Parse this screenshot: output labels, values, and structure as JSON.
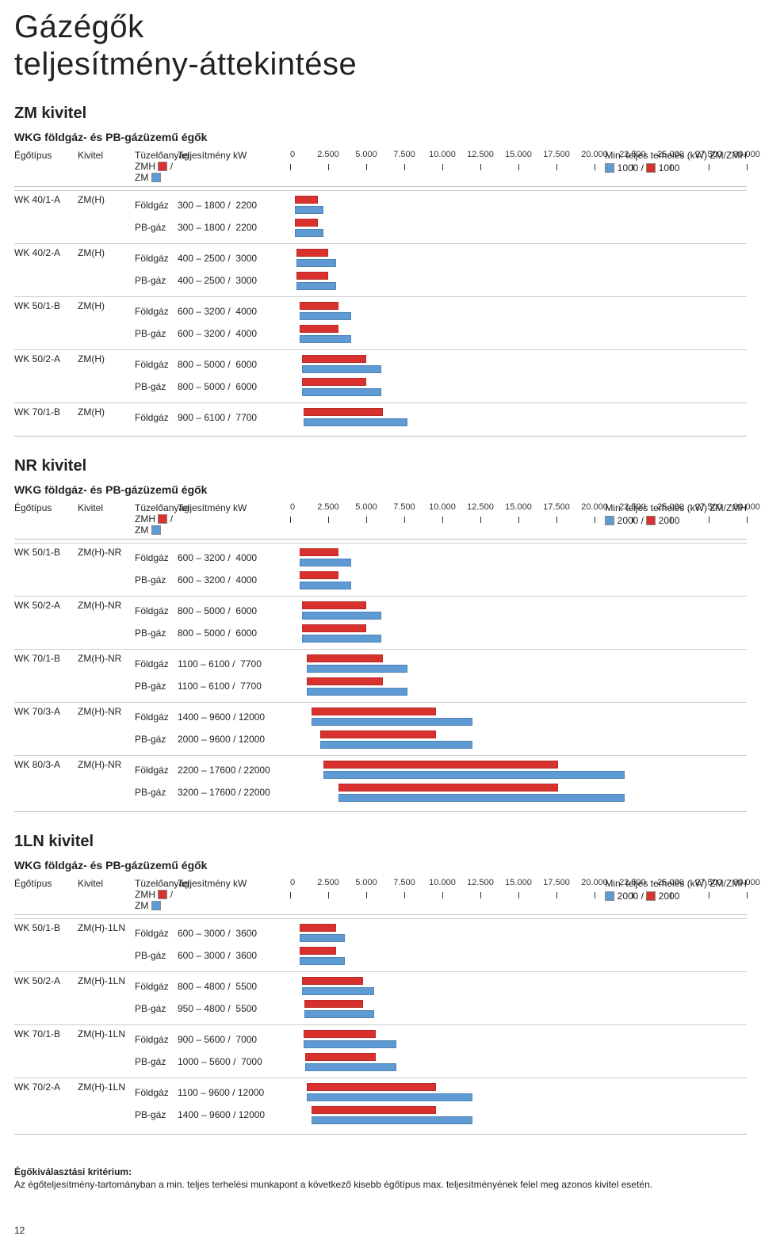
{
  "title": "Gázégők",
  "subtitle": "teljesítmény-áttekintése",
  "axis": {
    "min": 0,
    "max": 30000,
    "ticks": [
      {
        "v": 0,
        "l": "0"
      },
      {
        "v": 2500,
        "l": "2.500"
      },
      {
        "v": 5000,
        "l": "5.000"
      },
      {
        "v": 7500,
        "l": "7.500"
      },
      {
        "v": 10000,
        "l": "10.000"
      },
      {
        "v": 12500,
        "l": "12.500"
      },
      {
        "v": 15000,
        "l": "15.000"
      },
      {
        "v": 17500,
        "l": "17.500"
      },
      {
        "v": 20000,
        "l": "20.000"
      },
      {
        "v": 22500,
        "l": "22.500"
      },
      {
        "v": 25000,
        "l": "25.000"
      },
      {
        "v": 27500,
        "l": "27.500"
      },
      {
        "v": 30000,
        "l": "30.000"
      }
    ]
  },
  "colors": {
    "zmh": "#d9322e",
    "zm": "#5e9bd4",
    "border": "#cccccc"
  },
  "headers": {
    "egotipus": "Égőtípus",
    "kivitel": "Kivitel",
    "tuzelo": "Tüzelőanyag",
    "telj": "Teljesítmény kW",
    "zmh": "ZMH",
    "zm": "/ ZM",
    "legend_title": "Min. teljes terhelés (kW) ZM/ZMH"
  },
  "sections": [
    {
      "title": "ZM kivitel",
      "sub": "WKG földgáz- és PB-gázüzemű égők",
      "legend": "1000 / 1000",
      "rows": [
        {
          "model": "WK 40/1-A",
          "kivitel": "ZM(H)",
          "lines": [
            {
              "fuel": "Földgáz",
              "txt": "300 – 1800 /  2200",
              "r": [
                300,
                1800
              ],
              "b": [
                300,
                2200
              ]
            },
            {
              "fuel": "PB-gáz",
              "txt": "300 – 1800 /  2200",
              "r": [
                300,
                1800
              ],
              "b": [
                300,
                2200
              ]
            }
          ]
        },
        {
          "model": "WK 40/2-A",
          "kivitel": "ZM(H)",
          "lines": [
            {
              "fuel": "Földgáz",
              "txt": "400 – 2500 /  3000",
              "r": [
                400,
                2500
              ],
              "b": [
                400,
                3000
              ]
            },
            {
              "fuel": "PB-gáz",
              "txt": "400 – 2500 /  3000",
              "r": [
                400,
                2500
              ],
              "b": [
                400,
                3000
              ]
            }
          ]
        },
        {
          "model": "WK 50/1-B",
          "kivitel": "ZM(H)",
          "lines": [
            {
              "fuel": "Földgáz",
              "txt": "600 – 3200 /  4000",
              "r": [
                600,
                3200
              ],
              "b": [
                600,
                4000
              ]
            },
            {
              "fuel": "PB-gáz",
              "txt": "600 – 3200 /  4000",
              "r": [
                600,
                3200
              ],
              "b": [
                600,
                4000
              ]
            }
          ]
        },
        {
          "model": "WK 50/2-A",
          "kivitel": "ZM(H)",
          "lines": [
            {
              "fuel": "Földgáz",
              "txt": "800 – 5000 /  6000",
              "r": [
                800,
                5000
              ],
              "b": [
                800,
                6000
              ]
            },
            {
              "fuel": "PB-gáz",
              "txt": "800 – 5000 /  6000",
              "r": [
                800,
                5000
              ],
              "b": [
                800,
                6000
              ]
            }
          ]
        },
        {
          "model": "WK 70/1-B",
          "kivitel": "ZM(H)",
          "lines": [
            {
              "fuel": "Földgáz",
              "txt": "900 – 6100 /  7700",
              "r": [
                900,
                6100
              ],
              "b": [
                900,
                7700
              ]
            }
          ]
        }
      ]
    },
    {
      "title": "NR kivitel",
      "sub": "WKG földgáz- és PB-gázüzemű égők",
      "legend": "2000 / 2000",
      "rows": [
        {
          "model": "WK 50/1-B",
          "kivitel": "ZM(H)-NR",
          "lines": [
            {
              "fuel": "Földgáz",
              "txt": "600 – 3200 /  4000",
              "r": [
                600,
                3200
              ],
              "b": [
                600,
                4000
              ]
            },
            {
              "fuel": "PB-gáz",
              "txt": "600 – 3200 /  4000",
              "r": [
                600,
                3200
              ],
              "b": [
                600,
                4000
              ]
            }
          ]
        },
        {
          "model": "WK 50/2-A",
          "kivitel": "ZM(H)-NR",
          "lines": [
            {
              "fuel": "Földgáz",
              "txt": "800 – 5000 /  6000",
              "r": [
                800,
                5000
              ],
              "b": [
                800,
                6000
              ]
            },
            {
              "fuel": "PB-gáz",
              "txt": "800 – 5000 /  6000",
              "r": [
                800,
                5000
              ],
              "b": [
                800,
                6000
              ]
            }
          ]
        },
        {
          "model": "WK 70/1-B",
          "kivitel": "ZM(H)-NR",
          "lines": [
            {
              "fuel": "Földgáz",
              "txt": "1100 – 6100 /  7700",
              "r": [
                1100,
                6100
              ],
              "b": [
                1100,
                7700
              ]
            },
            {
              "fuel": "PB-gáz",
              "txt": "1100 – 6100 /  7700",
              "r": [
                1100,
                6100
              ],
              "b": [
                1100,
                7700
              ]
            }
          ]
        },
        {
          "model": "WK 70/3-A",
          "kivitel": "ZM(H)-NR",
          "lines": [
            {
              "fuel": "Földgáz",
              "txt": "1400 – 9600 / 12000",
              "r": [
                1400,
                9600
              ],
              "b": [
                1400,
                12000
              ]
            },
            {
              "fuel": "PB-gáz",
              "txt": "2000 – 9600 / 12000",
              "r": [
                2000,
                9600
              ],
              "b": [
                2000,
                12000
              ]
            }
          ]
        },
        {
          "model": "WK 80/3-A",
          "kivitel": "ZM(H)-NR",
          "lines": [
            {
              "fuel": "Földgáz",
              "txt": "2200 – 17600 / 22000",
              "r": [
                2200,
                17600
              ],
              "b": [
                2200,
                22000
              ]
            },
            {
              "fuel": "PB-gáz",
              "txt": "3200 – 17600 / 22000",
              "r": [
                3200,
                17600
              ],
              "b": [
                3200,
                22000
              ]
            }
          ]
        }
      ]
    },
    {
      "title": "1LN kivitel",
      "sub": "WKG földgáz- és PB-gázüzemű égők",
      "legend": "2000 / 2000",
      "rows": [
        {
          "model": "WK 50/1-B",
          "kivitel": "ZM(H)-1LN",
          "lines": [
            {
              "fuel": "Földgáz",
              "txt": "600 – 3000 /  3600",
              "r": [
                600,
                3000
              ],
              "b": [
                600,
                3600
              ]
            },
            {
              "fuel": "PB-gáz",
              "txt": "600 – 3000 /  3600",
              "r": [
                600,
                3000
              ],
              "b": [
                600,
                3600
              ]
            }
          ]
        },
        {
          "model": "WK 50/2-A",
          "kivitel": "ZM(H)-1LN",
          "lines": [
            {
              "fuel": "Földgáz",
              "txt": "800 – 4800 /  5500",
              "r": [
                800,
                4800
              ],
              "b": [
                800,
                5500
              ]
            },
            {
              "fuel": "PB-gáz",
              "txt": "950 – 4800 /  5500",
              "r": [
                950,
                4800
              ],
              "b": [
                950,
                5500
              ]
            }
          ]
        },
        {
          "model": "WK 70/1-B",
          "kivitel": "ZM(H)-1LN",
          "lines": [
            {
              "fuel": "Földgáz",
              "txt": "900 – 5600 /  7000",
              "r": [
                900,
                5600
              ],
              "b": [
                900,
                7000
              ]
            },
            {
              "fuel": "PB-gáz",
              "txt": "1000 – 5600 /  7000",
              "r": [
                1000,
                5600
              ],
              "b": [
                1000,
                7000
              ]
            }
          ]
        },
        {
          "model": "WK 70/2-A",
          "kivitel": "ZM(H)-1LN",
          "lines": [
            {
              "fuel": "Földgáz",
              "txt": "1100 – 9600 / 12000",
              "r": [
                1100,
                9600
              ],
              "b": [
                1100,
                12000
              ]
            },
            {
              "fuel": "PB-gáz",
              "txt": "1400 – 9600 / 12000",
              "r": [
                1400,
                9600
              ],
              "b": [
                1400,
                12000
              ]
            }
          ]
        }
      ]
    }
  ],
  "footnote_h": "Égőkiválasztási kritérium:",
  "footnote": "Az égőteljesítmény-tartományban a min. teljes terhelési munkapont a következő kisebb égőtípus max. teljesítményének felel meg azonos kivitel esetén.",
  "pagenum": "12"
}
